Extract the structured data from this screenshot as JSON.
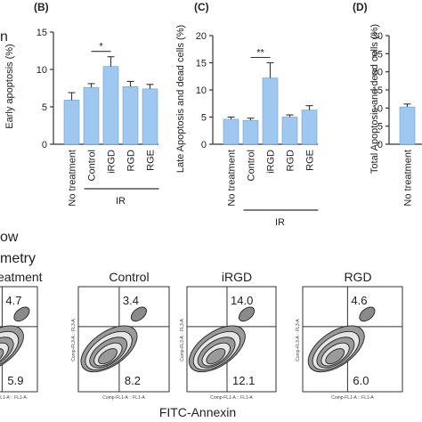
{
  "chart_data": [
    {
      "type": "bar",
      "panel": "(B)",
      "ylabel": "Early apoptosis (%)",
      "ylim": [
        0,
        15
      ],
      "yticks": [
        0,
        5,
        10,
        15
      ],
      "categories": [
        "No treatment",
        "Control",
        "iRGD",
        "RGD",
        "RGE"
      ],
      "values": [
        5.9,
        7.6,
        10.4,
        7.7,
        7.4
      ],
      "errors": [
        1.0,
        0.5,
        1.3,
        0.7,
        0.6
      ],
      "significance": {
        "label": "*",
        "between": [
          "Control",
          "iRGD"
        ]
      },
      "group_label": "IR",
      "group_members": [
        "Control",
        "iRGD",
        "RGD",
        "RGE"
      ]
    },
    {
      "type": "bar",
      "panel": "(C)",
      "ylabel": "Late Apoptosis and dead cells (%)",
      "ylim": [
        0,
        20
      ],
      "yticks": [
        0,
        5,
        10,
        15,
        20
      ],
      "categories": [
        "No treatment",
        "Control",
        "iRGD",
        "RGD",
        "RGE"
      ],
      "values": [
        4.6,
        4.4,
        12.2,
        5.0,
        6.3
      ],
      "errors": [
        0.4,
        0.4,
        2.8,
        0.4,
        0.8
      ],
      "significance": {
        "label": "**",
        "between": [
          "Control",
          "iRGD"
        ]
      },
      "group_label": "IR",
      "group_members": [
        "Control",
        "iRGD",
        "RGD",
        "RGE"
      ]
    },
    {
      "type": "bar",
      "panel": "(D)",
      "ylabel": "Total Apoptosis and dead cells (%)",
      "ylim": [
        0,
        30
      ],
      "yticks": [
        0,
        5,
        10,
        15,
        20,
        25,
        30
      ],
      "categories": [
        "No treatment"
      ],
      "values": [
        10.3
      ],
      "errors": [
        0.8
      ]
    },
    {
      "type": "scatter",
      "panel": "flow cytometry",
      "xlabel": "FITC-Annexin",
      "axis_text": "Comp-FL1-A :: FL1-A",
      "y_axis_text": "Comp-FL3-A :: FL3-A",
      "plots": [
        {
          "title": "treatment",
          "upper_right": "4.7",
          "lower_right": "5.9"
        },
        {
          "title": "Control",
          "upper_right": "3.4",
          "lower_right": "8.2"
        },
        {
          "title": "iRGD",
          "upper_right": "14.0",
          "lower_right": "12.1"
        },
        {
          "title": "RGD",
          "upper_right": "4.6",
          "lower_right": "6.0"
        }
      ]
    }
  ],
  "left_text": {
    "line1": "n",
    "line2": "ow",
    "line3": "metry"
  }
}
